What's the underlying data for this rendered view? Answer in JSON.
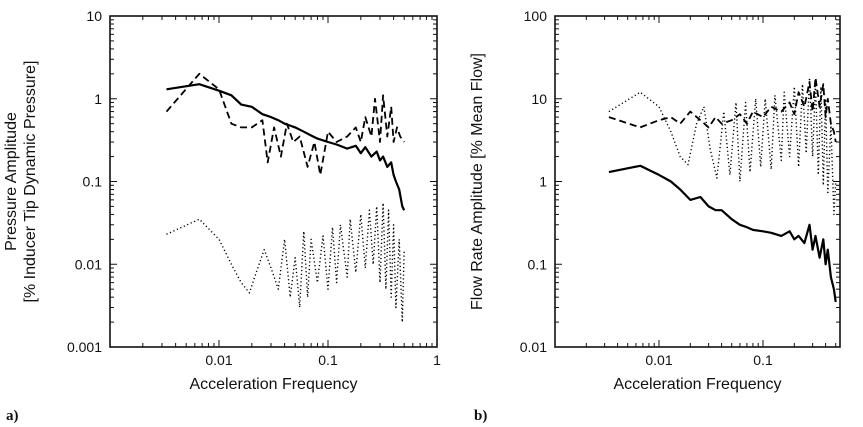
{
  "chart_data": [
    {
      "type": "line",
      "panel_label": "a)",
      "xlabel": "Acceleration Frequency",
      "ylabel_lines": [
        "Pressure Amplitude",
        "[% Inducer Tip Dynamic Pressure]"
      ],
      "xscale": "log",
      "yscale": "log",
      "xlim": [
        0.001,
        1
      ],
      "ylim": [
        0.001,
        10
      ],
      "xticks": [
        0.01,
        0.1,
        1
      ],
      "xtick_labels": [
        "0.01",
        "0.1",
        "1"
      ],
      "yticks": [
        0.001,
        0.01,
        0.1,
        1,
        10
      ],
      "ytick_labels": [
        "0.001",
        "0.01",
        "0.1",
        "1",
        "10"
      ],
      "grid": false,
      "series": [
        {
          "style": "solid",
          "color": "#000000",
          "x": [
            0.0033,
            0.0066,
            0.01,
            0.013,
            0.016,
            0.02,
            0.025,
            0.03,
            0.035,
            0.04,
            0.05,
            0.06,
            0.07,
            0.08,
            0.1,
            0.12,
            0.15,
            0.18,
            0.2,
            0.22,
            0.25,
            0.28,
            0.3,
            0.32,
            0.35,
            0.38,
            0.4,
            0.42,
            0.45,
            0.48,
            0.5
          ],
          "y": [
            1.3,
            1.5,
            1.25,
            1.1,
            0.85,
            0.8,
            0.65,
            0.6,
            0.55,
            0.5,
            0.45,
            0.4,
            0.36,
            0.33,
            0.3,
            0.28,
            0.25,
            0.27,
            0.22,
            0.26,
            0.2,
            0.23,
            0.18,
            0.2,
            0.15,
            0.17,
            0.12,
            0.1,
            0.08,
            0.05,
            0.045
          ]
        },
        {
          "style": "dashed",
          "color": "#000000",
          "x": [
            0.0033,
            0.0066,
            0.01,
            0.013,
            0.016,
            0.02,
            0.025,
            0.028,
            0.032,
            0.037,
            0.042,
            0.048,
            0.055,
            0.065,
            0.075,
            0.085,
            0.1,
            0.12,
            0.15,
            0.18,
            0.2,
            0.22,
            0.25,
            0.27,
            0.3,
            0.32,
            0.35,
            0.38,
            0.4,
            0.43,
            0.46,
            0.5
          ],
          "y": [
            0.7,
            2.0,
            1.3,
            0.5,
            0.45,
            0.45,
            0.55,
            0.17,
            0.45,
            0.2,
            0.5,
            0.3,
            0.35,
            0.15,
            0.3,
            0.12,
            0.4,
            0.3,
            0.35,
            0.45,
            0.3,
            0.6,
            0.35,
            1.0,
            0.3,
            1.1,
            0.35,
            0.8,
            0.3,
            0.45,
            0.35,
            0.3
          ]
        },
        {
          "style": "dotted",
          "color": "#000000",
          "x": [
            0.0033,
            0.0066,
            0.01,
            0.013,
            0.016,
            0.019,
            0.022,
            0.026,
            0.03,
            0.035,
            0.04,
            0.045,
            0.05,
            0.055,
            0.06,
            0.065,
            0.07,
            0.08,
            0.09,
            0.1,
            0.11,
            0.12,
            0.13,
            0.15,
            0.16,
            0.18,
            0.2,
            0.22,
            0.24,
            0.26,
            0.28,
            0.3,
            0.32,
            0.34,
            0.36,
            0.38,
            0.4,
            0.42,
            0.45,
            0.48,
            0.5
          ],
          "y": [
            0.023,
            0.035,
            0.02,
            0.01,
            0.006,
            0.0045,
            0.008,
            0.015,
            0.009,
            0.005,
            0.02,
            0.004,
            0.012,
            0.003,
            0.025,
            0.004,
            0.02,
            0.006,
            0.022,
            0.005,
            0.028,
            0.006,
            0.03,
            0.007,
            0.035,
            0.008,
            0.04,
            0.009,
            0.045,
            0.01,
            0.05,
            0.006,
            0.055,
            0.005,
            0.045,
            0.004,
            0.03,
            0.003,
            0.02,
            0.002,
            0.015
          ]
        }
      ]
    },
    {
      "type": "line",
      "panel_label": "b)",
      "xlabel": "Acceleration Frequency",
      "ylabel_lines": [
        "Flow Rate Amplitude [% Mean Flow]"
      ],
      "xscale": "log",
      "yscale": "log",
      "xlim": [
        0.001,
        0.55
      ],
      "ylim": [
        0.01,
        100
      ],
      "xticks": [
        0.01,
        0.1
      ],
      "xtick_labels": [
        "0.01",
        "0.1"
      ],
      "yticks": [
        0.01,
        0.1,
        1,
        10,
        100
      ],
      "ytick_labels": [
        "0.01",
        "0.1",
        "1",
        "10",
        "100"
      ],
      "grid": false,
      "series": [
        {
          "style": "solid",
          "color": "#000000",
          "x": [
            0.0033,
            0.0066,
            0.01,
            0.013,
            0.016,
            0.02,
            0.025,
            0.03,
            0.035,
            0.04,
            0.05,
            0.06,
            0.07,
            0.08,
            0.1,
            0.12,
            0.15,
            0.18,
            0.2,
            0.22,
            0.25,
            0.28,
            0.3,
            0.32,
            0.35,
            0.38,
            0.4,
            0.42,
            0.45,
            0.48,
            0.5
          ],
          "y": [
            1.3,
            1.55,
            1.2,
            1.0,
            0.8,
            0.6,
            0.65,
            0.5,
            0.45,
            0.45,
            0.35,
            0.3,
            0.28,
            0.26,
            0.25,
            0.24,
            0.22,
            0.25,
            0.2,
            0.22,
            0.18,
            0.3,
            0.15,
            0.22,
            0.12,
            0.2,
            0.1,
            0.15,
            0.07,
            0.05,
            0.035
          ]
        },
        {
          "style": "dashed",
          "color": "#000000",
          "x": [
            0.0033,
            0.0066,
            0.01,
            0.013,
            0.016,
            0.02,
            0.025,
            0.03,
            0.035,
            0.04,
            0.05,
            0.06,
            0.07,
            0.08,
            0.1,
            0.12,
            0.15,
            0.18,
            0.2,
            0.22,
            0.25,
            0.28,
            0.3,
            0.32,
            0.35,
            0.38,
            0.4,
            0.42,
            0.45,
            0.48,
            0.5
          ],
          "y": [
            6.0,
            4.5,
            5.5,
            6.0,
            5.0,
            7.0,
            5.5,
            4.5,
            6.0,
            5.0,
            5.5,
            6.5,
            5.0,
            7.0,
            6.0,
            8.0,
            7.0,
            9.0,
            6.5,
            12.0,
            8.0,
            16.0,
            7.0,
            18.0,
            8.0,
            15.0,
            6.0,
            10.0,
            5.0,
            4.0,
            3.0
          ]
        },
        {
          "style": "dotted",
          "color": "#000000",
          "x": [
            0.0033,
            0.0066,
            0.01,
            0.013,
            0.016,
            0.019,
            0.023,
            0.027,
            0.031,
            0.036,
            0.042,
            0.048,
            0.055,
            0.06,
            0.068,
            0.075,
            0.085,
            0.095,
            0.105,
            0.12,
            0.13,
            0.15,
            0.16,
            0.18,
            0.2,
            0.22,
            0.24,
            0.26,
            0.28,
            0.3,
            0.32,
            0.34,
            0.36,
            0.38,
            0.4,
            0.42,
            0.45,
            0.48,
            0.5
          ],
          "y": [
            7.0,
            12.0,
            8.0,
            4.0,
            2.0,
            1.6,
            5.0,
            8.0,
            2.5,
            1.1,
            7.0,
            1.2,
            9.0,
            1.0,
            9.0,
            1.3,
            10.0,
            1.5,
            10.0,
            1.4,
            11.0,
            1.8,
            12.0,
            2.0,
            14.0,
            1.5,
            15.0,
            2.2,
            18.0,
            2.0,
            16.0,
            1.2,
            14.0,
            0.9,
            10.0,
            0.7,
            5.0,
            0.4,
            1.0
          ]
        }
      ]
    }
  ]
}
